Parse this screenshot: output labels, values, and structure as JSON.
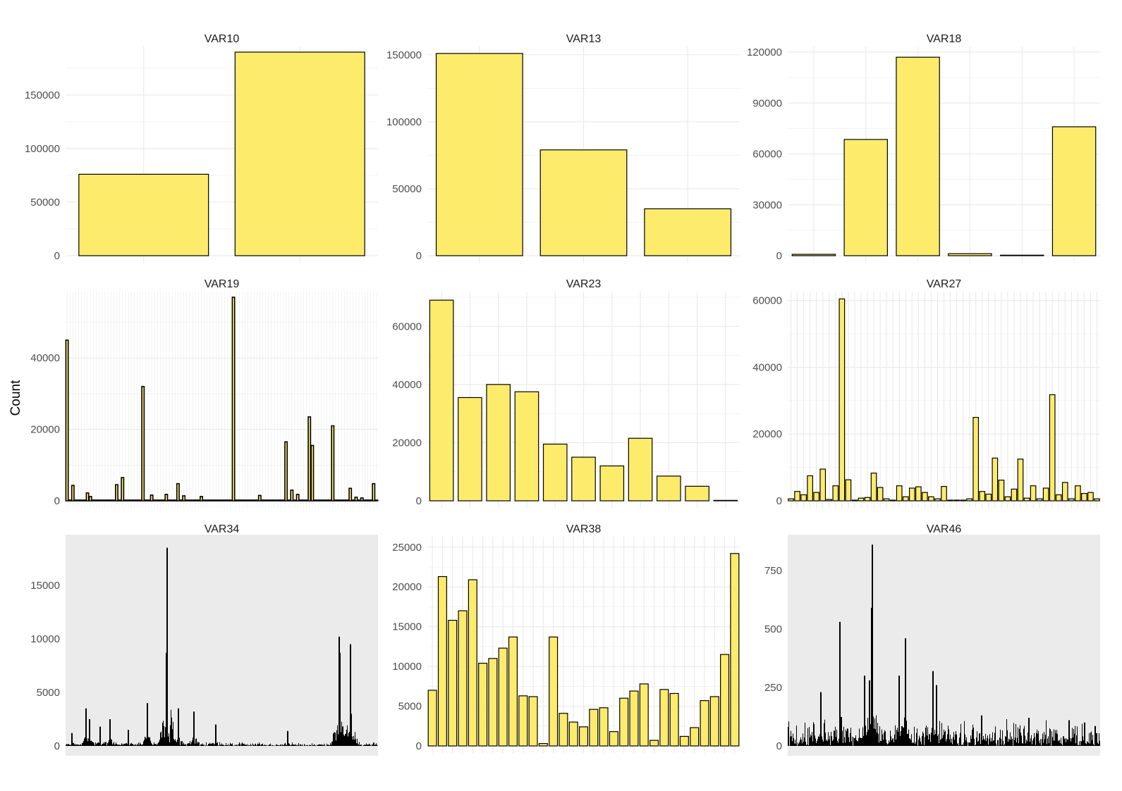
{
  "figure": {
    "ylabel": "Count"
  },
  "colors": {
    "bar_fill": "#FDEB6C",
    "bar_stroke": "#000000",
    "grid": "#EBEBEB",
    "panel_bg_dense": "#EBEBEB"
  },
  "chart_data": [
    {
      "type": "bar",
      "title": "VAR10",
      "ylim": [
        0,
        190000
      ],
      "grid": true,
      "yticks": [
        0,
        50000,
        100000,
        150000
      ],
      "ytick_labels": [
        "0",
        "50000",
        "100000",
        "150000"
      ],
      "values": [
        76000,
        190000
      ]
    },
    {
      "type": "bar",
      "title": "VAR13",
      "ylim": [
        0,
        152000
      ],
      "grid": true,
      "yticks": [
        0,
        50000,
        100000,
        150000
      ],
      "ytick_labels": [
        "0",
        "50000",
        "100000",
        "150000"
      ],
      "values": [
        151000,
        79000,
        35000
      ]
    },
    {
      "type": "bar",
      "title": "VAR18",
      "ylim": [
        0,
        120000
      ],
      "grid": true,
      "yticks": [
        0,
        30000,
        60000,
        90000,
        120000
      ],
      "ytick_labels": [
        "0",
        "30000",
        "60000",
        "90000",
        "120000"
      ],
      "values": [
        800,
        68500,
        117000,
        1200,
        300,
        76000
      ]
    },
    {
      "type": "bar",
      "title": "VAR19",
      "ylim": [
        0,
        57000
      ],
      "grid": true,
      "dense": true,
      "yticks": [
        0,
        20000,
        40000
      ],
      "ytick_labels": [
        "0",
        "20000",
        "40000"
      ],
      "values": [
        45000,
        200,
        4300,
        200,
        200,
        200,
        200,
        2200,
        1200,
        200,
        200,
        200,
        200,
        200,
        200,
        200,
        200,
        4500,
        200,
        6500,
        200,
        200,
        200,
        200,
        200,
        200,
        32000,
        200,
        200,
        1600,
        200,
        200,
        200,
        200,
        1800,
        200,
        200,
        200,
        4800,
        200,
        1400,
        200,
        200,
        200,
        200,
        200,
        1200,
        200,
        200,
        200,
        200,
        200,
        200,
        200,
        200,
        200,
        200,
        57000,
        200,
        200,
        200,
        200,
        200,
        200,
        200,
        200,
        1500,
        200,
        200,
        200,
        200,
        200,
        200,
        200,
        200,
        16500,
        200,
        3000,
        200,
        1800,
        200,
        200,
        200,
        23500,
        15500,
        200,
        200,
        200,
        200,
        200,
        200,
        21000,
        200,
        200,
        200,
        200,
        200,
        3500,
        200,
        1000,
        200,
        800,
        200,
        200,
        200,
        4800,
        200
      ]
    },
    {
      "type": "bar",
      "title": "VAR23",
      "ylim": [
        0,
        70000
      ],
      "grid": true,
      "yticks": [
        0,
        20000,
        40000,
        60000
      ],
      "ytick_labels": [
        "0",
        "20000",
        "40000",
        "60000"
      ],
      "values": [
        69000,
        35500,
        40000,
        37500,
        19500,
        15000,
        12000,
        21500,
        8500,
        5000,
        150
      ]
    },
    {
      "type": "bar",
      "title": "VAR27",
      "ylim": [
        0,
        61000
      ],
      "grid": true,
      "yticks": [
        0,
        20000,
        40000,
        60000
      ],
      "ytick_labels": [
        "0",
        "20000",
        "40000",
        "60000"
      ],
      "values": [
        600,
        2800,
        1800,
        7500,
        2500,
        9500,
        400,
        4500,
        60500,
        6300,
        200,
        800,
        1000,
        8300,
        4000,
        600,
        200,
        4500,
        1200,
        3800,
        4200,
        2500,
        1200,
        600,
        4300,
        200,
        200,
        200,
        600,
        25000,
        2800,
        2000,
        12800,
        6200,
        1200,
        3500,
        12500,
        800,
        4500,
        600,
        3800,
        31800,
        1800,
        5500,
        600,
        4500,
        2200,
        2500,
        600
      ]
    },
    {
      "type": "bar",
      "title": "VAR34",
      "ylim": [
        0,
        19000
      ],
      "grid": true,
      "dense": true,
      "yticks": [
        0,
        5000,
        10000,
        15000
      ],
      "ytick_labels": [
        "0",
        "5000",
        "10000",
        "15000"
      ],
      "spikes": [
        [
          0.02,
          1200
        ],
        [
          0.065,
          3500
        ],
        [
          0.075,
          2500
        ],
        [
          0.11,
          1800
        ],
        [
          0.14,
          2500
        ],
        [
          0.2,
          1500
        ],
        [
          0.26,
          4000
        ],
        [
          0.325,
          18500
        ],
        [
          0.322,
          8700
        ],
        [
          0.36,
          3500
        ],
        [
          0.41,
          3200
        ],
        [
          0.48,
          2000
        ],
        [
          0.71,
          1400
        ],
        [
          0.875,
          10200
        ],
        [
          0.878,
          8700
        ],
        [
          0.91,
          9500
        ],
        [
          0.913,
          3000
        ]
      ],
      "noise_level": 300
    },
    {
      "type": "bar",
      "title": "VAR38",
      "ylim": [
        0,
        25600
      ],
      "grid": true,
      "yticks": [
        0,
        5000,
        10000,
        15000,
        20000,
        25000
      ],
      "ytick_labels": [
        "0",
        "5000",
        "10000",
        "15000",
        "20000",
        "25000"
      ],
      "values": [
        7000,
        21300,
        15800,
        17000,
        20900,
        10400,
        11000,
        12300,
        13700,
        6300,
        6200,
        300,
        13700,
        4100,
        3000,
        2400,
        4600,
        4800,
        1800,
        6000,
        6900,
        7800,
        700,
        7100,
        6600,
        1200,
        2300,
        5700,
        6200,
        11500,
        24200
      ]
    },
    {
      "type": "bar",
      "title": "VAR46",
      "ylim": [
        0,
        870
      ],
      "grid": true,
      "dense": true,
      "yticks": [
        0,
        250,
        500,
        750
      ],
      "ytick_labels": [
        "0",
        "250",
        "500",
        "750"
      ],
      "spikes": [
        [
          0.105,
          230
        ],
        [
          0.165,
          530
        ],
        [
          0.245,
          300
        ],
        [
          0.26,
          280
        ],
        [
          0.27,
          860
        ],
        [
          0.268,
          590
        ],
        [
          0.375,
          460
        ],
        [
          0.355,
          300
        ],
        [
          0.465,
          320
        ],
        [
          0.475,
          260
        ],
        [
          0.62,
          130
        ],
        [
          0.77,
          120
        ],
        [
          0.9,
          110
        ],
        [
          0.95,
          100
        ]
      ],
      "noise_level": 90
    }
  ]
}
